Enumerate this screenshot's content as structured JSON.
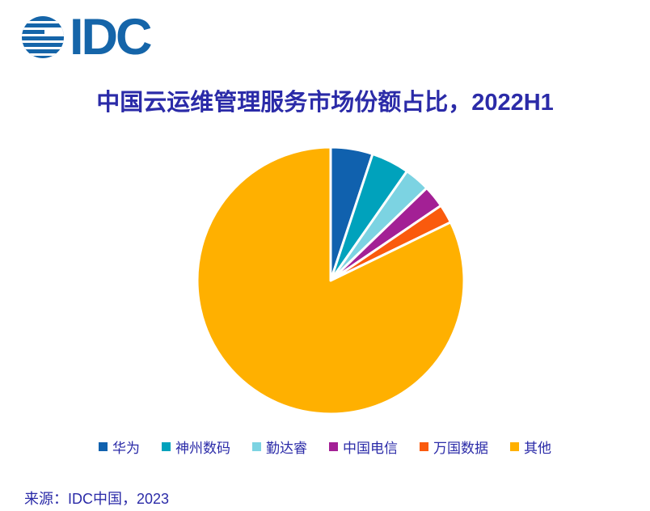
{
  "logo": {
    "text": "IDC",
    "icon": "striped-globe-icon",
    "color": "#1565A9"
  },
  "chart_data": {
    "type": "pie",
    "title": "中国云运维管理服务市场份额占比，2022H1",
    "categories": [
      "华为",
      "神州数码",
      "勤达睿",
      "中国电信",
      "万国数据",
      "其他"
    ],
    "values": [
      5.1,
      4.6,
      3.1,
      2.7,
      2.3,
      82.2
    ],
    "unit": "%",
    "colors": [
      "#1061AE",
      "#00A2BC",
      "#7CD3E2",
      "#A32095",
      "#FA5A0D",
      "#FFB000"
    ],
    "start_angle": "12 o'clock",
    "direction": "clockwise",
    "slice_gap_color": "#FFFFFF",
    "legend_position": "bottom"
  },
  "source": {
    "label": "来源：IDC中国，2023"
  },
  "text_color": "#2B2BA8"
}
